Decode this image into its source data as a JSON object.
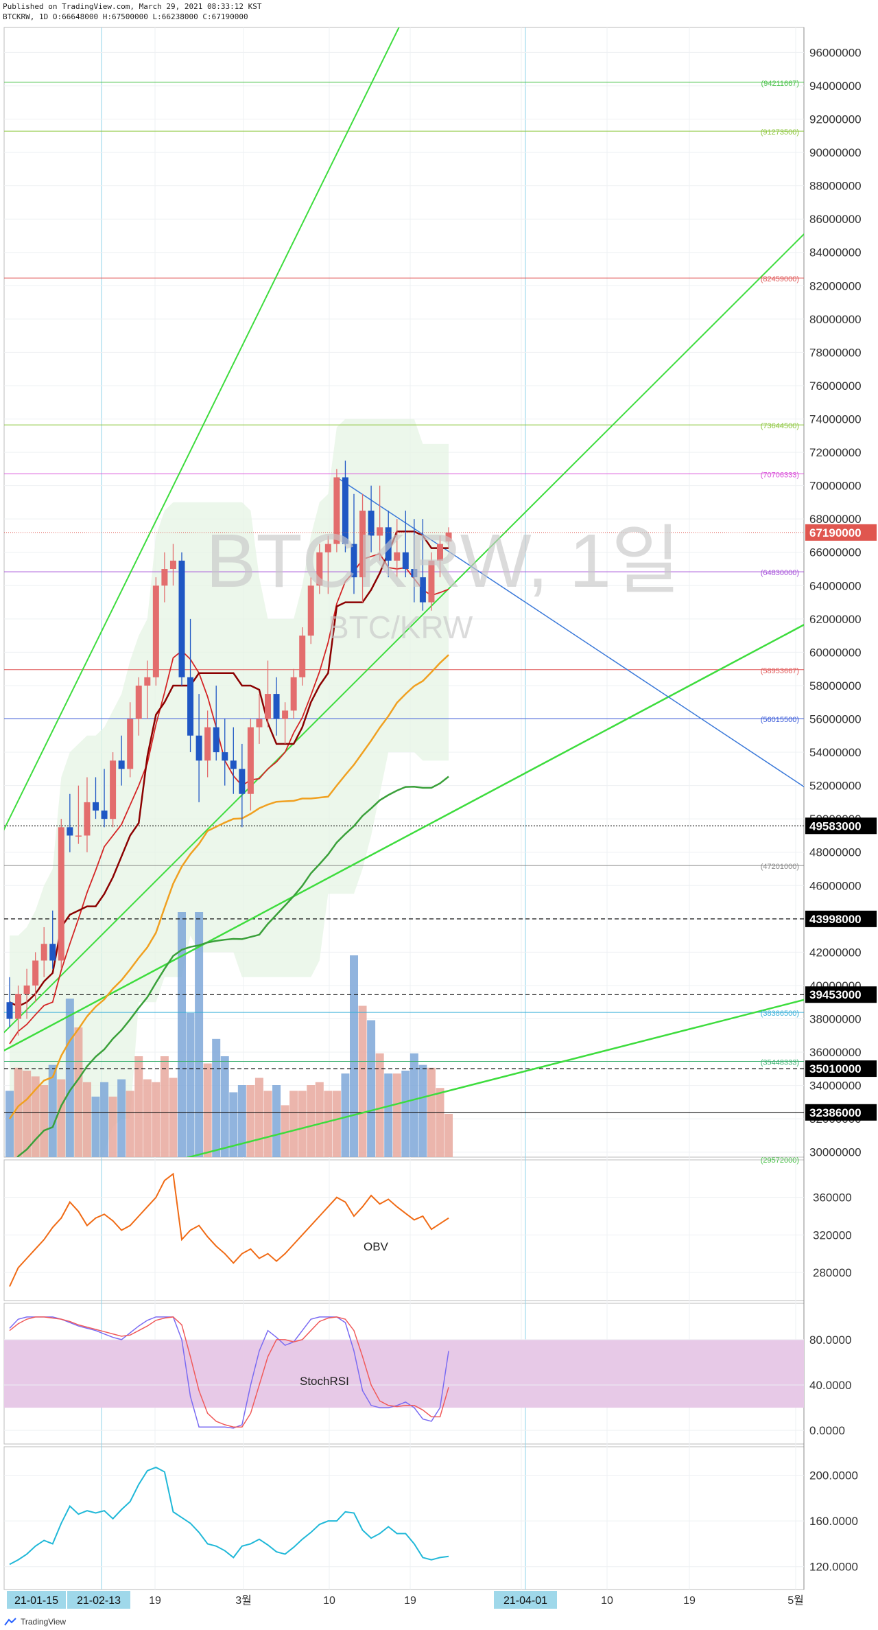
{
  "header": {
    "published": "Published on TradingView.com, March 29, 2021 08:33:12 KST",
    "ohlc": "BTCKRW, 1D O:66648000 H:67500000 L:66238000 C:67190000"
  },
  "watermark": {
    "main": "BTCKRW, 1일",
    "sub": "BTC/KRW"
  },
  "footer": {
    "brand": "TradingView"
  },
  "colors": {
    "bull": "#e36d6d",
    "bear": "#1f57c4",
    "price_tag": "#e0564f",
    "green_channel": "#3ddc3d",
    "blue_trend": "#3b79d9",
    "ema_short": "#d42424",
    "ema_long": "#8b0000",
    "ma_orange": "#f0a020",
    "ma_green": "#3aa03a",
    "obv": "#f06a14",
    "stoch_k": "#7a6bf2",
    "stoch_d": "#f05a5a",
    "band": "#e7c9e7",
    "cyan": "#20b8d8"
  },
  "chart_data": [
    {
      "type": "candlestick",
      "title": "BTCKRW, 1일",
      "x_axis_labels": [
        "21-01-15",
        "21-02-13",
        "19",
        "3월",
        "10",
        "19",
        "21-04-01",
        "10",
        "19",
        "5월"
      ],
      "price_axis_ticks": [
        "30000000",
        "32000000",
        "34000000",
        "36000000",
        "38000000",
        "40000000",
        "42000000",
        "44000000",
        "46000000",
        "48000000",
        "50000000",
        "52000000",
        "54000000",
        "56000000",
        "58000000",
        "60000000",
        "62000000",
        "64000000",
        "66000000",
        "68000000",
        "70000000",
        "72000000",
        "74000000",
        "76000000",
        "78000000",
        "80000000",
        "82000000",
        "84000000",
        "86000000",
        "88000000",
        "90000000",
        "92000000",
        "94000000",
        "96000000"
      ],
      "ylim": [
        29700000,
        97500000
      ],
      "last_price": "67190000",
      "horizontal_levels": [
        {
          "value": 94211667,
          "label": "(94211667)",
          "color": "#4ac24a"
        },
        {
          "value": 91273500,
          "label": "(91273500)",
          "color": "#8ec63f"
        },
        {
          "value": 82459000,
          "label": "(82459000)",
          "color": "#e05a5a"
        },
        {
          "value": 73644500,
          "label": "(73644500)",
          "color": "#8ec63f"
        },
        {
          "value": 70706333,
          "label": "(70706333)",
          "color": "#d94fd9"
        },
        {
          "value": 64830000,
          "label": "(64830000)",
          "color": "#a54fd9"
        },
        {
          "value": 58953667,
          "label": "(58953667)",
          "color": "#e05a5a"
        },
        {
          "value": 56015500,
          "label": "(56015500)",
          "color": "#3b5bd9"
        },
        {
          "value": 47201000,
          "label": "(47201000)",
          "color": "#888888"
        },
        {
          "value": 38386500,
          "label": "(38386500)",
          "color": "#3bb0d9"
        },
        {
          "value": 35448333,
          "label": "(35448333)",
          "color": "#3bb070"
        },
        {
          "value": 29572000,
          "label": "(29572000)",
          "color": "#4ac24a"
        }
      ],
      "tagged_levels": [
        {
          "value": 49583000,
          "label": "49583000",
          "style": "dotted"
        },
        {
          "value": 43998000,
          "label": "43998000",
          "style": "dashed"
        },
        {
          "value": 39453000,
          "label": "39453000",
          "style": "dashed"
        },
        {
          "value": 35010000,
          "label": "35010000",
          "style": "dashed"
        },
        {
          "value": 32386000,
          "label": "32386000",
          "style": "solid"
        }
      ],
      "candles": [
        [
          0,
          39000000,
          40500000,
          37500000,
          38000000
        ],
        [
          1,
          38000000,
          40000000,
          37000000,
          39500000
        ],
        [
          2,
          39500000,
          41000000,
          38000000,
          40000000
        ],
        [
          3,
          40000000,
          42000000,
          39000000,
          41500000
        ],
        [
          4,
          41500000,
          43500000,
          40500000,
          42500000
        ],
        [
          5,
          42500000,
          44500000,
          41000000,
          41500000
        ],
        [
          6,
          41500000,
          50000000,
          41000000,
          49500000
        ],
        [
          7,
          49500000,
          51500000,
          48000000,
          49000000
        ],
        [
          8,
          49000000,
          52000000,
          48500000,
          49000000
        ],
        [
          9,
          49000000,
          52500000,
          48000000,
          51000000
        ],
        [
          10,
          51000000,
          52500000,
          50000000,
          50500000
        ],
        [
          11,
          50500000,
          53000000,
          49500000,
          50000000
        ],
        [
          12,
          50000000,
          54000000,
          49500000,
          53500000
        ],
        [
          13,
          53500000,
          55000000,
          52000000,
          53000000
        ],
        [
          14,
          53000000,
          57000000,
          52500000,
          56000000
        ],
        [
          15,
          56000000,
          58500000,
          55000000,
          58000000
        ],
        [
          16,
          58000000,
          59500000,
          56000000,
          58500000
        ],
        [
          17,
          58500000,
          64500000,
          58000000,
          64000000
        ],
        [
          18,
          64000000,
          66000000,
          63000000,
          65000000
        ],
        [
          19,
          65000000,
          66500000,
          64000000,
          65500000
        ],
        [
          20,
          65500000,
          66000000,
          58000000,
          58500000
        ],
        [
          21,
          58500000,
          62000000,
          54000000,
          55000000
        ],
        [
          22,
          55000000,
          57500000,
          51000000,
          53500000
        ],
        [
          23,
          53500000,
          56500000,
          52500000,
          55500000
        ],
        [
          24,
          55500000,
          58000000,
          53500000,
          54000000
        ],
        [
          25,
          54000000,
          56000000,
          52000000,
          53500000
        ],
        [
          26,
          53500000,
          55500000,
          51500000,
          53000000
        ],
        [
          27,
          53000000,
          54500000,
          49500000,
          51500000
        ],
        [
          28,
          51500000,
          56000000,
          50500000,
          55500000
        ],
        [
          29,
          55500000,
          57500000,
          54500000,
          56000000
        ],
        [
          30,
          56000000,
          59500000,
          55500000,
          57500000
        ],
        [
          31,
          57500000,
          58500000,
          55000000,
          56000000
        ],
        [
          32,
          56000000,
          57000000,
          54500000,
          56500000
        ],
        [
          33,
          56500000,
          59000000,
          56000000,
          58500000
        ],
        [
          34,
          58500000,
          61500000,
          58000000,
          61000000
        ],
        [
          35,
          61000000,
          64500000,
          60500000,
          64000000
        ],
        [
          36,
          64000000,
          66500000,
          63500000,
          66000000
        ],
        [
          37,
          66000000,
          67000000,
          63500000,
          66500000
        ],
        [
          38,
          66500000,
          71000000,
          66000000,
          70500000
        ],
        [
          39,
          70500000,
          71500000,
          66000000,
          66500000
        ],
        [
          40,
          66500000,
          69500000,
          63500000,
          64500000
        ],
        [
          41,
          64500000,
          69500000,
          63000000,
          68500000
        ],
        [
          42,
          68500000,
          70000000,
          66000000,
          67000000
        ],
        [
          43,
          67000000,
          70000000,
          65500000,
          67500000
        ],
        [
          44,
          67500000,
          68500000,
          64500000,
          65500000
        ],
        [
          45,
          65500000,
          68000000,
          64500000,
          66000000
        ],
        [
          46,
          66000000,
          68500000,
          64500000,
          65000000
        ],
        [
          47,
          65000000,
          68000000,
          63000000,
          64500000
        ],
        [
          48,
          64500000,
          68000000,
          62500000,
          63000000
        ],
        [
          49,
          63000000,
          66000000,
          62500000,
          65500000
        ],
        [
          50,
          65500000,
          67000000,
          64500000,
          66500000
        ],
        [
          51,
          66648000,
          67500000,
          66238000,
          67190000
        ]
      ],
      "volume": [
        46,
        62,
        60,
        56,
        50,
        64,
        54,
        110,
        90,
        52,
        42,
        52,
        42,
        54,
        46,
        70,
        54,
        52,
        70,
        55,
        170,
        100,
        170,
        65,
        82,
        70,
        45,
        50,
        50,
        55,
        46,
        50,
        36,
        46,
        46,
        50,
        52,
        46,
        46,
        58,
        140,
        105,
        95,
        72,
        58,
        58,
        60,
        72,
        64,
        62,
        48,
        30
      ],
      "volume_max": 200
    },
    {
      "type": "line",
      "title": "OBV",
      "y_ticks": [
        "280000",
        "320000",
        "360000"
      ],
      "ylim": [
        250000,
        400000
      ],
      "values": [
        265000,
        285000,
        295000,
        305000,
        315000,
        328000,
        338000,
        355000,
        345000,
        330000,
        338000,
        342000,
        335000,
        325000,
        330000,
        340000,
        350000,
        360000,
        378000,
        385000,
        315000,
        325000,
        330000,
        318000,
        308000,
        300000,
        290000,
        300000,
        305000,
        295000,
        300000,
        292000,
        300000,
        310000,
        320000,
        330000,
        340000,
        350000,
        360000,
        355000,
        340000,
        350000,
        362000,
        353000,
        358000,
        350000,
        343000,
        336000,
        340000,
        326000,
        332000,
        338000
      ]
    },
    {
      "type": "line",
      "title": "StochRSI",
      "y_ticks": [
        "0.0000",
        "40.0000",
        "80.0000"
      ],
      "ylim": [
        -12,
        112
      ],
      "band": [
        20,
        80
      ],
      "series": [
        {
          "values": [
            90,
            98,
            100,
            100,
            100,
            100,
            98,
            95,
            92,
            90,
            88,
            85,
            82,
            80,
            86,
            92,
            97,
            100,
            100,
            100,
            80,
            30,
            3,
            3,
            3,
            3,
            2,
            5,
            40,
            70,
            88,
            82,
            75,
            78,
            88,
            98,
            100,
            100,
            100,
            95,
            70,
            35,
            22,
            20,
            20,
            22,
            25,
            20,
            10,
            8,
            20,
            70
          ]
        },
        {
          "values": [
            88,
            94,
            98,
            100,
            100,
            99,
            98,
            96,
            93,
            91,
            89,
            87,
            85,
            83,
            84,
            88,
            92,
            97,
            99,
            100,
            93,
            65,
            35,
            15,
            8,
            5,
            3,
            3,
            15,
            40,
            65,
            80,
            80,
            78,
            80,
            88,
            96,
            99,
            100,
            98,
            88,
            65,
            40,
            26,
            22,
            21,
            22,
            22,
            18,
            12,
            12,
            38
          ]
        }
      ]
    },
    {
      "type": "line",
      "title": "",
      "y_ticks": [
        "120.0000",
        "160.0000",
        "200.0000"
      ],
      "ylim": [
        100,
        225
      ],
      "values": [
        122,
        126,
        131,
        138,
        143,
        140,
        158,
        173,
        166,
        169,
        167,
        169,
        162,
        170,
        177,
        192,
        204,
        207,
        203,
        168,
        163,
        158,
        150,
        140,
        138,
        134,
        128,
        138,
        140,
        144,
        139,
        133,
        131,
        137,
        144,
        150,
        157,
        160,
        160,
        168,
        167,
        152,
        145,
        149,
        155,
        149,
        149,
        140,
        128,
        126,
        128,
        129
      ]
    }
  ]
}
